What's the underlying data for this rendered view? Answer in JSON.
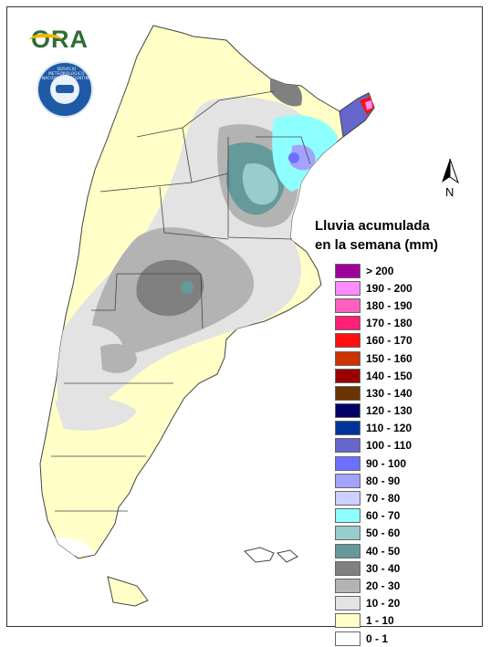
{
  "header": {
    "brand_text": "ORA",
    "seal_text": "SERVICIO METEOROLOGICO NACIONAL · ARGENTINA"
  },
  "north": {
    "label": "N"
  },
  "legend": {
    "title_line1": "Lluvia acumulada",
    "title_line2": "en la semana (mm)",
    "items": [
      {
        "label": "> 200",
        "color": "#a0009a"
      },
      {
        "label": "190 - 200",
        "color": "#ff8cff"
      },
      {
        "label": "180 - 190",
        "color": "#ff5fbf"
      },
      {
        "label": "170 - 180",
        "color": "#ff1f75"
      },
      {
        "label": "160 - 170",
        "color": "#ff1010"
      },
      {
        "label": "150 - 160",
        "color": "#cc3300"
      },
      {
        "label": "140 - 150",
        "color": "#990000"
      },
      {
        "label": "130 - 140",
        "color": "#6b3300"
      },
      {
        "label": "120 - 130",
        "color": "#000066"
      },
      {
        "label": "110 - 120",
        "color": "#003399"
      },
      {
        "label": "100 - 110",
        "color": "#6666cc"
      },
      {
        "label": "90 - 100",
        "color": "#6f6fff"
      },
      {
        "label": "80 - 90",
        "color": "#a3a3ff"
      },
      {
        "label": "70 - 80",
        "color": "#cccfff"
      },
      {
        "label": "60 - 70",
        "color": "#8effff"
      },
      {
        "label": "50 - 60",
        "color": "#99cccc"
      },
      {
        "label": "40 - 50",
        "color": "#669999"
      },
      {
        "label": "30 - 40",
        "color": "#808080"
      },
      {
        "label": "20 - 30",
        "color": "#b3b3b3"
      },
      {
        "label": "10 - 20",
        "color": "#e3e3e3"
      },
      {
        "label": "1 - 10",
        "color": "#ffffc7"
      },
      {
        "label": "0 - 1",
        "color": "#ffffff"
      }
    ]
  },
  "map": {
    "land_color": "#ffffc7",
    "border_color": "#444444"
  }
}
